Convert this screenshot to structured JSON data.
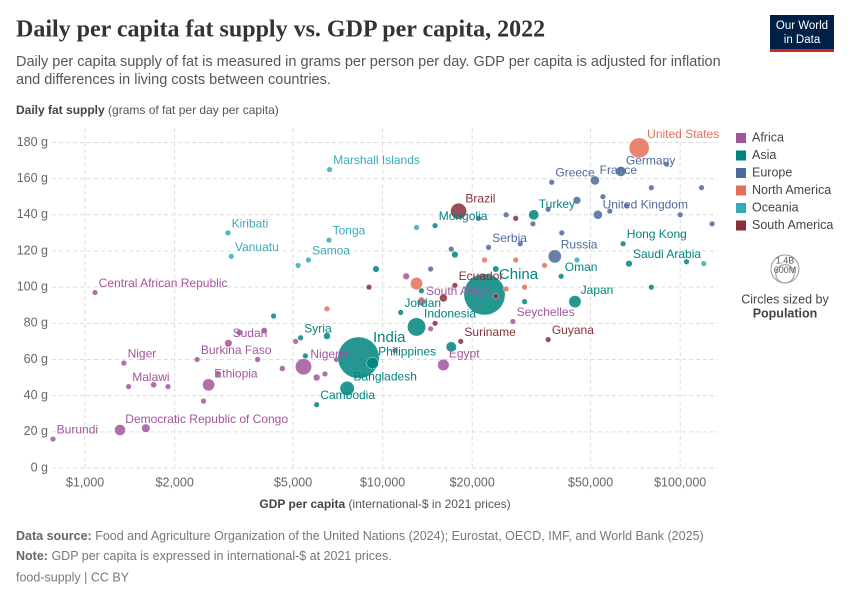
{
  "chart_data": {
    "type": "scatter",
    "title": "Daily per capita fat supply vs. GDP per capita, 2022",
    "subtitle": [
      "Daily per capita supply of fat is measured in grams per person per day. GDP per capita is adjusted for inflation",
      "and differences in living costs between countries."
    ],
    "logo": [
      "Our World",
      "in Data"
    ],
    "y_label": "Daily fat supply",
    "y_label_note": "(grams of fat per day per capita)",
    "x_label": "GDP per capita",
    "x_label_note": "(international-$ in 2021 prices)",
    "x_log": true,
    "grid": true,
    "xlim": [
      774,
      134000
    ],
    "ylim": [
      0,
      188
    ],
    "xticks": [
      {
        "value": 1000,
        "label": "$1,000"
      },
      {
        "value": 2000,
        "label": "$2,000"
      },
      {
        "value": 5000,
        "label": "$5,000"
      },
      {
        "value": 10000,
        "label": "$10,000"
      },
      {
        "value": 20000,
        "label": "$20,000"
      },
      {
        "value": 50000,
        "label": "$50,000"
      },
      {
        "value": 100000,
        "label": "$100,000"
      }
    ],
    "yticks": [
      {
        "value": 0,
        "label": "0 g"
      },
      {
        "value": 20,
        "label": "20 g"
      },
      {
        "value": 40,
        "label": "40 g"
      },
      {
        "value": 60,
        "label": "60 g"
      },
      {
        "value": 80,
        "label": "80 g"
      },
      {
        "value": 100,
        "label": "100 g"
      },
      {
        "value": 120,
        "label": "120 g"
      },
      {
        "value": 140,
        "label": "140 g"
      },
      {
        "value": 160,
        "label": "160 g"
      },
      {
        "value": 180,
        "label": "180 g"
      }
    ],
    "legend": "right",
    "size_legend": {
      "title": "Circles sized by",
      "label": "Population",
      "values": [
        {
          "value": 1400,
          "label": "1.4B"
        },
        {
          "value": 600,
          "label": "600M"
        }
      ]
    },
    "series": [
      {
        "name": "Africa",
        "color": "#a2559c",
        "x": [
          780,
          1310,
          1080,
          1400,
          1350,
          2380,
          2600,
          3030,
          5420,
          13500,
          16000,
          27400,
          1700,
          1600,
          1900,
          2500,
          2800,
          3300,
          3800,
          4000,
          4600,
          5100,
          6000,
          6400,
          7000,
          11000,
          12000,
          14500
        ],
        "values": [
          16,
          21,
          97,
          45,
          58,
          60,
          46,
          69,
          56,
          92,
          57,
          81,
          46,
          22,
          45,
          37,
          52,
          75,
          60,
          76,
          55,
          70,
          50,
          52,
          60,
          65,
          106,
          77
        ],
        "sizes": [
          13,
          100,
          5.5,
          20,
          26,
          23,
          123,
          47,
          219,
          60,
          111,
          0.1,
          30,
          60,
          17,
          12,
          33,
          30,
          27,
          33,
          29,
          8,
          38,
          20,
          12,
          2,
          37,
          18
        ],
        "labels": [
          "Burundi",
          "Democratic Republic of Congo",
          "Central African Republic",
          "Malawi",
          "Niger",
          "Burkina Faso",
          "Ethiopia",
          "Sudan",
          "Nigeria",
          "South Africa",
          "Egypt",
          "Seychelles",
          null,
          null,
          null,
          null,
          null,
          null,
          null,
          null,
          null,
          null,
          null,
          null,
          null,
          null,
          null,
          null
        ]
      },
      {
        "name": "Asia",
        "color": "#00847e",
        "x": [
          22000,
          8300,
          13000,
          7600,
          9250,
          6000,
          5300,
          11500,
          15000,
          32200,
          44300,
          39800,
          64300,
          67300,
          4300,
          5500,
          6500,
          9500,
          13500,
          17000,
          17500,
          24000,
          30000,
          80000,
          105000
        ],
        "values": [
          96,
          61,
          78,
          44,
          58,
          35,
          72,
          86,
          134,
          140,
          92,
          106,
          124,
          113,
          84,
          62,
          73,
          110,
          98,
          67,
          118,
          110,
          92,
          100,
          114
        ],
        "sizes": [
          1410,
          1420,
          276,
          171,
          116,
          17,
          22,
          11,
          3.4,
          85,
          124,
          4.6,
          7.3,
          36,
          8,
          20,
          40,
          35,
          20,
          87,
          36,
          33,
          5,
          2.5,
          2
        ],
        "labels": [
          "China",
          "India",
          "Indonesia",
          "Bangladesh",
          "Philippines",
          "Cambodia",
          "Syria",
          "Jordan",
          "Mongolia",
          "Turkey",
          "Japan",
          "Oman",
          "Hong Kong",
          "Saudi Arabia",
          null,
          null,
          null,
          null,
          null,
          null,
          null,
          null,
          null,
          null,
          null
        ]
      },
      {
        "name": "Europe",
        "color": "#4c6a9c",
        "x": [
          63200,
          51700,
          37000,
          52900,
          37900,
          22700,
          14500,
          17000,
          21000,
          26000,
          29000,
          32000,
          36000,
          40000,
          45000,
          55000,
          58000,
          66000,
          80000,
          90000,
          100000,
          118000,
          128000
        ],
        "values": [
          164,
          159,
          158,
          140,
          117,
          122,
          110,
          121,
          138,
          140,
          124,
          135,
          143,
          130,
          148,
          150,
          142,
          145,
          155,
          168,
          140,
          155,
          135
        ],
        "sizes": [
          84,
          68,
          10,
          67,
          144,
          6.7,
          3,
          2.8,
          10,
          4,
          2,
          10,
          5,
          2,
          48,
          11,
          5.5,
          17,
          5.5,
          9,
          5,
          0.7,
          5
        ],
        "labels": [
          "Germany",
          "France",
          "Greece",
          "United Kingdom",
          "Russia",
          "Serbia",
          null,
          null,
          null,
          null,
          null,
          null,
          null,
          null,
          null,
          null,
          null,
          null,
          null,
          null,
          null,
          null,
          null
        ]
      },
      {
        "name": "North America",
        "color": "#e56e5a",
        "x": [
          72800,
          6500,
          13000,
          13500,
          22000,
          26000,
          28000,
          30000,
          35000
        ],
        "values": [
          177,
          88,
          102,
          93,
          115,
          99,
          115,
          100,
          112
        ],
        "sizes": [
          333,
          0.2,
          126,
          3,
          5,
          4,
          0.3,
          1.3,
          0.4
        ],
        "labels": [
          "United States",
          null,
          null,
          null,
          null,
          null,
          null,
          null,
          null
        ]
      },
      {
        "name": "Oceania",
        "color": "#38aaba",
        "x": [
          6630,
          3020,
          3100,
          6600,
          5630,
          5200,
          13000,
          45000,
          120000
        ],
        "values": [
          165,
          130,
          117,
          126,
          115,
          112,
          133,
          115,
          113
        ],
        "sizes": [
          0.04,
          0.13,
          0.33,
          0.1,
          0.22,
          0.9,
          0.2,
          0.1,
          0.2
        ],
        "labels": [
          "Marshall Islands",
          "Kiribati",
          "Vanuatu",
          "Tonga",
          "Samoa",
          null,
          null,
          null,
          null
        ]
      },
      {
        "name": "South America",
        "color": "#883039",
        "x": [
          18000,
          17500,
          18300,
          36000,
          9000,
          15000,
          16000,
          24000,
          28000
        ],
        "values": [
          142,
          101,
          70,
          71,
          100,
          80,
          94,
          95,
          138
        ],
        "sizes": [
          215,
          18,
          0.6,
          0.8,
          10,
          7,
          52,
          3.4,
          20
        ],
        "labels": [
          "Brazil",
          "Ecuador",
          "Suriname",
          "Guyana",
          null,
          null,
          null,
          null,
          null
        ]
      }
    ],
    "source_label": "Data source:",
    "source": "Food and Agriculture Organization of the United Nations (2024); Eurostat, OECD, IMF, and World Bank (2025)",
    "note_label": "Note:",
    "note": "GDP per capita is expressed in international-$ at 2021 prices.",
    "credit": "food-supply | CC BY"
  }
}
